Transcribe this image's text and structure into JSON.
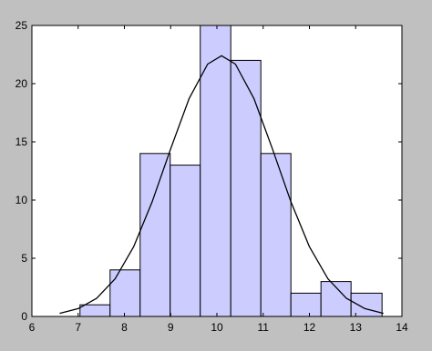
{
  "chart_data": {
    "type": "histogram",
    "bins": [
      7.04,
      7.69,
      8.34,
      8.99,
      9.64,
      10.3,
      10.95,
      11.6,
      12.25,
      12.9,
      13.57
    ],
    "counts": [
      1,
      4,
      14,
      13,
      25,
      22,
      14,
      2,
      3,
      2
    ],
    "color": "#ccccff",
    "fit": {
      "color": "#000000",
      "x": [
        6.6,
        7.0,
        7.4,
        7.8,
        8.2,
        8.6,
        9.0,
        9.4,
        9.8,
        10.1,
        10.4,
        10.8,
        11.2,
        11.6,
        12.0,
        12.4,
        12.8,
        13.2,
        13.6
      ],
      "values": [
        0.26,
        0.67,
        1.56,
        3.24,
        5.99,
        9.85,
        14.4,
        18.73,
        21.68,
        22.4,
        21.68,
        18.73,
        14.4,
        9.85,
        5.99,
        3.24,
        1.56,
        0.67,
        0.26
      ]
    },
    "xlim": [
      6,
      14
    ],
    "xticks": [
      6,
      7,
      8,
      9,
      10,
      11,
      12,
      13,
      14
    ],
    "ylim": [
      0,
      25
    ],
    "yticks": [
      0,
      5,
      10,
      15,
      20,
      25
    ]
  }
}
